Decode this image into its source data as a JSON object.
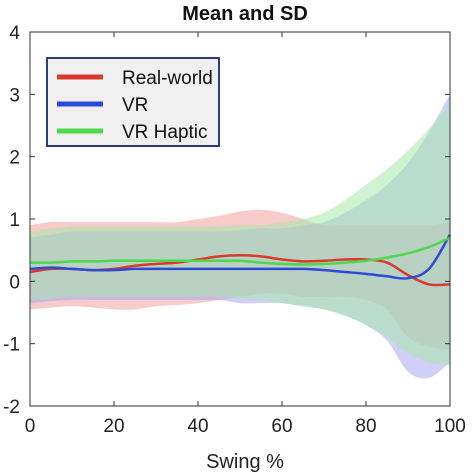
{
  "chart_data": {
    "type": "line",
    "title": "Mean and SD",
    "xlabel": "Swing %",
    "ylabel": "",
    "xlim": [
      0,
      100
    ],
    "ylim": [
      -2,
      4
    ],
    "xticks": [
      0,
      20,
      40,
      60,
      80,
      100
    ],
    "xtick_labels": [
      "0",
      "20",
      "40",
      "60",
      "80",
      "100"
    ],
    "yticks": [
      -2,
      -1,
      0,
      1,
      2,
      3,
      4
    ],
    "ytick_labels": [
      "-2",
      "-1",
      "0",
      "1",
      "2",
      "3",
      "4"
    ],
    "grid": false,
    "legend_position": "top-left",
    "x": [
      0,
      5,
      10,
      15,
      20,
      25,
      30,
      35,
      40,
      45,
      50,
      55,
      60,
      65,
      70,
      75,
      80,
      85,
      90,
      95,
      100
    ],
    "series": [
      {
        "name": "Real-world",
        "color": "#d93a2b",
        "band_color": "#f2a0a0",
        "mean": [
          0.15,
          0.2,
          0.2,
          0.18,
          0.2,
          0.25,
          0.28,
          0.3,
          0.35,
          0.4,
          0.42,
          0.4,
          0.35,
          0.32,
          0.33,
          0.35,
          0.35,
          0.3,
          0.1,
          -0.05,
          -0.05
        ],
        "upper": [
          0.9,
          0.95,
          0.95,
          0.95,
          0.95,
          0.95,
          0.95,
          0.95,
          1.0,
          1.05,
          1.12,
          1.15,
          1.1,
          1.0,
          0.9,
          0.9,
          0.9,
          0.9,
          0.9,
          0.9,
          0.95
        ],
        "lower": [
          -0.45,
          -0.42,
          -0.4,
          -0.42,
          -0.45,
          -0.45,
          -0.4,
          -0.38,
          -0.35,
          -0.3,
          -0.25,
          -0.2,
          -0.2,
          -0.25,
          -0.25,
          -0.25,
          -0.3,
          -0.45,
          -0.9,
          -1.05,
          -1.1
        ]
      },
      {
        "name": "VR",
        "color": "#2d4bd1",
        "band_color": "#a8a8f5",
        "mean": [
          0.2,
          0.22,
          0.2,
          0.18,
          0.18,
          0.2,
          0.2,
          0.2,
          0.2,
          0.2,
          0.2,
          0.2,
          0.2,
          0.2,
          0.18,
          0.15,
          0.12,
          0.08,
          0.05,
          0.2,
          0.75
        ],
        "upper": [
          0.7,
          0.75,
          0.8,
          0.8,
          0.8,
          0.8,
          0.8,
          0.8,
          0.8,
          0.8,
          0.82,
          0.85,
          0.85,
          0.9,
          0.95,
          1.1,
          1.3,
          1.55,
          1.9,
          2.4,
          3.0
        ],
        "lower": [
          -0.35,
          -0.32,
          -0.3,
          -0.3,
          -0.3,
          -0.3,
          -0.3,
          -0.3,
          -0.3,
          -0.3,
          -0.35,
          -0.35,
          -0.35,
          -0.4,
          -0.45,
          -0.55,
          -0.7,
          -0.95,
          -1.45,
          -1.55,
          -1.3
        ]
      },
      {
        "name": "VR Haptic",
        "color": "#4ed84e",
        "band_color": "#a8e8a8",
        "mean": [
          0.3,
          0.3,
          0.32,
          0.32,
          0.33,
          0.33,
          0.33,
          0.33,
          0.33,
          0.33,
          0.33,
          0.3,
          0.28,
          0.27,
          0.28,
          0.3,
          0.33,
          0.38,
          0.45,
          0.55,
          0.7
        ],
        "upper": [
          0.8,
          0.85,
          0.88,
          0.88,
          0.88,
          0.88,
          0.88,
          0.88,
          0.88,
          0.88,
          0.9,
          0.9,
          0.95,
          1.0,
          1.1,
          1.3,
          1.55,
          1.8,
          2.1,
          2.45,
          2.85
        ],
        "lower": [
          -0.3,
          -0.28,
          -0.25,
          -0.25,
          -0.25,
          -0.25,
          -0.25,
          -0.25,
          -0.25,
          -0.25,
          -0.28,
          -0.3,
          -0.35,
          -0.4,
          -0.45,
          -0.55,
          -0.7,
          -0.9,
          -1.15,
          -1.3,
          -1.35
        ]
      }
    ]
  }
}
